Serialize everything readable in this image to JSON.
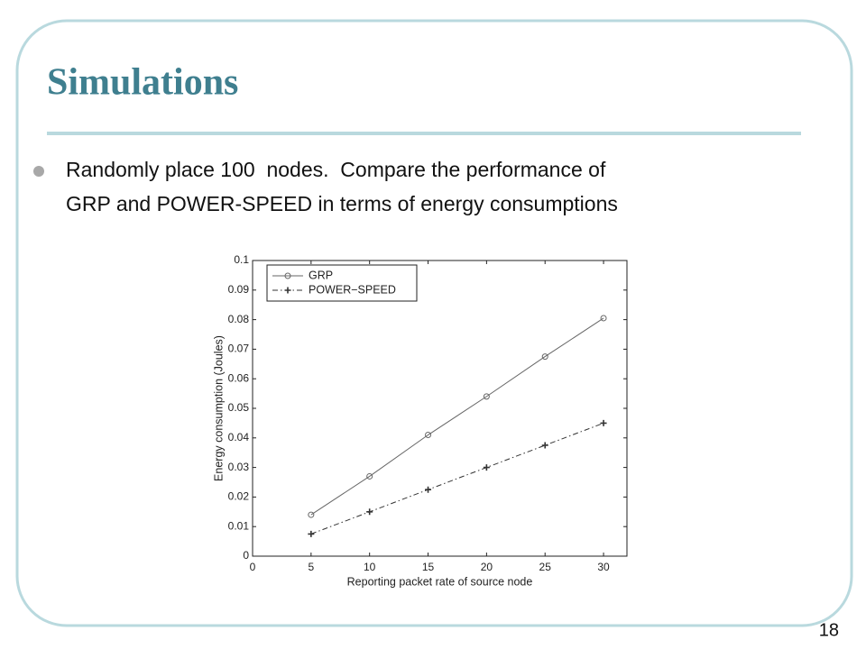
{
  "title": "Simulations",
  "bullet": {
    "lines": [
      "Randomly place 100  nodes.  Compare the performance of",
      "GRP and POWER-SPEED in terms of energy consumptions"
    ]
  },
  "page_number": "18",
  "chart_data": {
    "type": "line",
    "x_label": "Reporting packet rate of source node",
    "y_label": "Energy consumption (Joules)",
    "x": [
      5,
      10,
      15,
      20,
      25,
      30
    ],
    "series": [
      {
        "name": "GRP",
        "color": "#666666",
        "marker": "circle",
        "line_style": "solid",
        "values": [
          0.014,
          0.027,
          0.041,
          0.054,
          0.0675,
          0.0805
        ]
      },
      {
        "name": "POWER−SPEED",
        "color": "#333333",
        "marker": "plus",
        "line_style": "dashdot",
        "values": [
          0.0075,
          0.015,
          0.0225,
          0.03,
          0.0375,
          0.045
        ]
      }
    ],
    "xlim": [
      0,
      32
    ],
    "xticks": [
      0,
      5,
      10,
      15,
      20,
      25,
      30
    ],
    "ylim": [
      0,
      0.1
    ],
    "yticks": [
      0,
      0.01,
      0.02,
      0.03,
      0.04,
      0.05,
      0.06,
      0.07,
      0.08,
      0.09,
      0.1
    ],
    "legend": "top-left"
  }
}
